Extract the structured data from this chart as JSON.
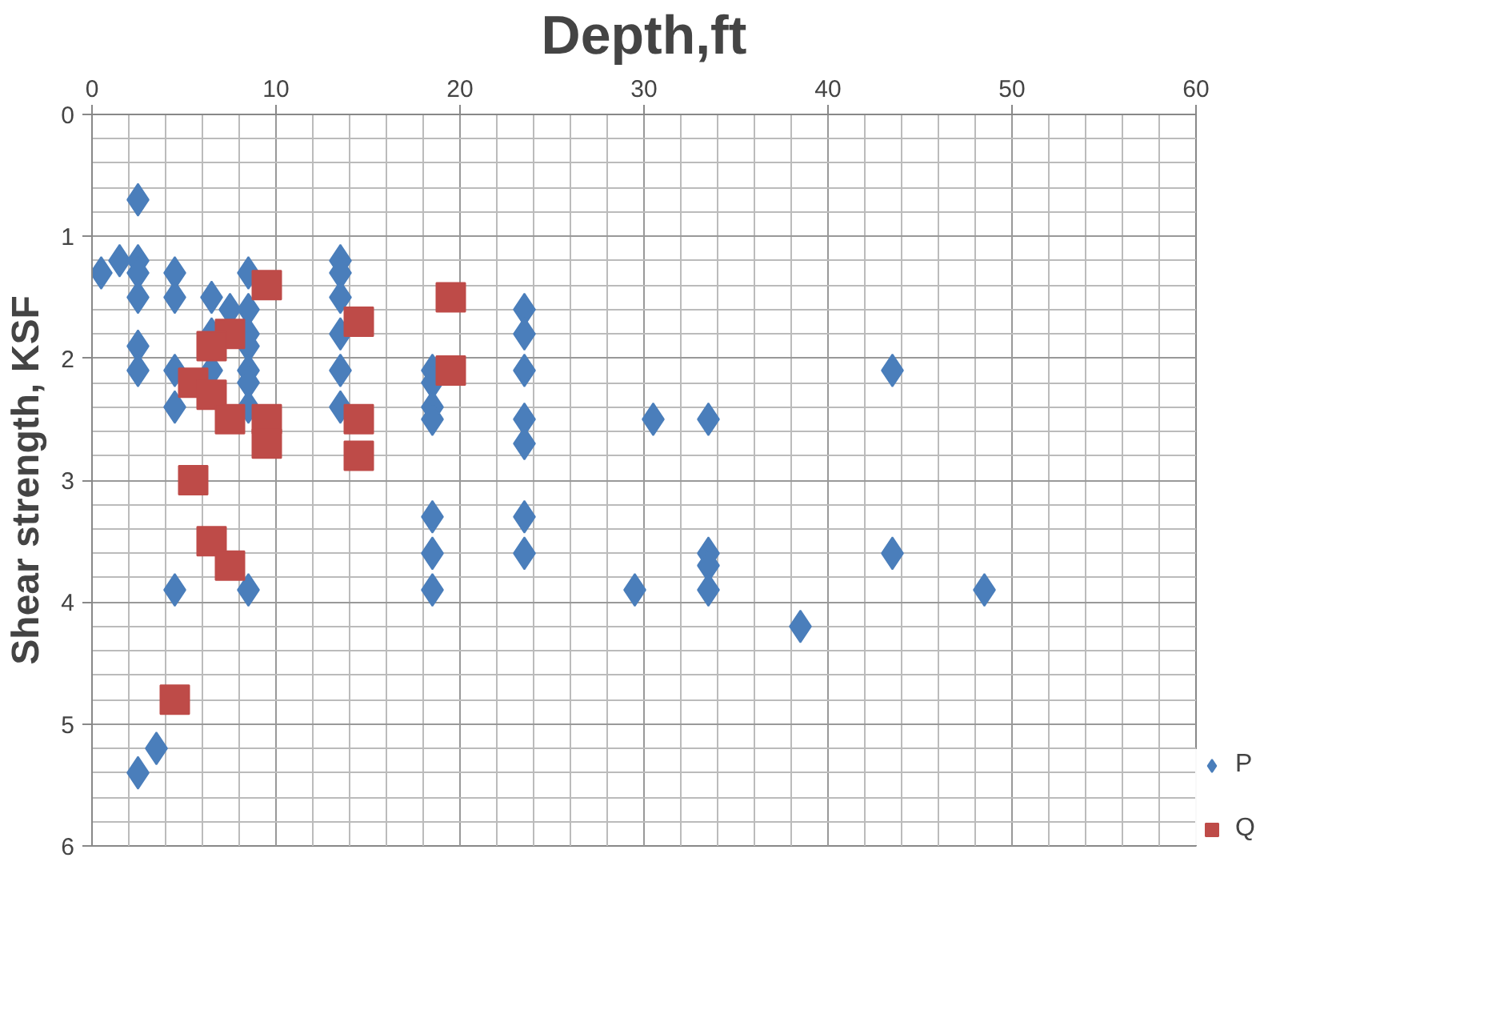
{
  "chart_data": {
    "type": "scatter",
    "xlabel": "Depth,ft",
    "ylabel": "Shear strength, KSF",
    "xlim": [
      0,
      60
    ],
    "xticks": [
      0,
      10,
      20,
      30,
      40,
      50,
      60
    ],
    "ylim": [
      6,
      0
    ],
    "yticks": [
      0,
      1,
      2,
      3,
      4,
      5,
      6
    ],
    "grid": true,
    "legend": "right",
    "series": [
      {
        "name": "P",
        "color": "#4a7ebb",
        "marker": "diamond",
        "x": [
          2.5,
          0.5,
          1.5,
          2.5,
          2.5,
          2.5,
          4.5,
          4.5,
          2.5,
          2.5,
          4.5,
          4.5,
          6.5,
          7.5,
          8.5,
          8.5,
          6.5,
          8.5,
          8.5,
          8.5,
          8.5,
          8.5,
          6.5,
          4.5,
          8.5,
          3.5,
          2.5,
          13.5,
          13.5,
          13.5,
          13.5,
          13.5,
          13.5,
          18.5,
          18.5,
          18.5,
          18.5,
          18.5,
          18.5,
          18.5,
          23.5,
          23.5,
          23.5,
          23.5,
          23.5,
          23.5,
          23.5,
          30.5,
          33.5,
          29.5,
          33.5,
          33.5,
          33.5,
          38.5,
          43.5,
          43.5,
          48.5
        ],
        "values": [
          0.7,
          1.3,
          1.2,
          1.2,
          1.3,
          1.5,
          1.3,
          1.5,
          1.9,
          2.1,
          2.1,
          2.4,
          1.5,
          1.6,
          1.3,
          1.6,
          1.8,
          1.8,
          1.9,
          2.1,
          2.2,
          2.4,
          2.1,
          3.9,
          3.9,
          5.2,
          5.4,
          1.2,
          1.3,
          1.5,
          1.8,
          2.1,
          2.4,
          2.1,
          2.2,
          2.4,
          2.5,
          3.3,
          3.6,
          3.9,
          1.6,
          1.8,
          2.1,
          2.5,
          2.7,
          3.3,
          3.6,
          2.5,
          2.5,
          3.9,
          3.6,
          3.7,
          3.9,
          4.2,
          2.1,
          3.6,
          3.9
        ]
      },
      {
        "name": "Q",
        "color": "#be4b48",
        "marker": "square",
        "x": [
          9.5,
          14.5,
          19.5,
          19.5,
          7.5,
          6.5,
          5.5,
          6.5,
          7.5,
          9.5,
          9.5,
          14.5,
          14.5,
          5.5,
          6.5,
          7.5,
          4.5
        ],
        "values": [
          1.4,
          1.7,
          1.5,
          2.1,
          1.8,
          1.9,
          2.2,
          2.3,
          2.5,
          2.5,
          2.7,
          2.5,
          2.8,
          3.0,
          3.5,
          3.7,
          4.8
        ]
      }
    ]
  }
}
